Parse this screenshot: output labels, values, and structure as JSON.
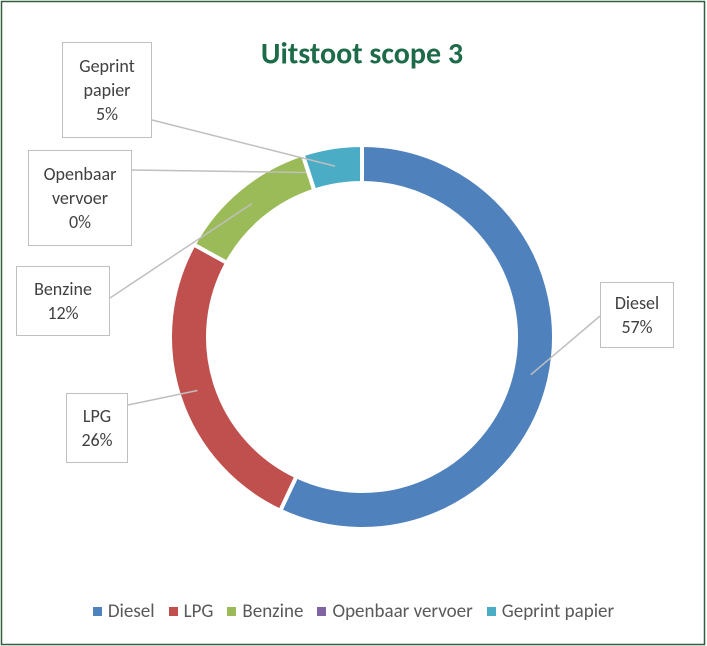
{
  "chart_data": {
    "type": "donut",
    "title": "Uitstoot scope 3",
    "categories": [
      "Diesel",
      "LPG",
      "Benzine",
      "Openbaar vervoer",
      "Geprint papier"
    ],
    "values": [
      57,
      26,
      12,
      0,
      5
    ],
    "value_labels": [
      "57%",
      "26%",
      "12%",
      "0%",
      "5%"
    ],
    "colors": [
      "#4f81bd",
      "#c0504d",
      "#9bbb59",
      "#8064a2",
      "#4bacc6"
    ],
    "legend": "bottom"
  }
}
